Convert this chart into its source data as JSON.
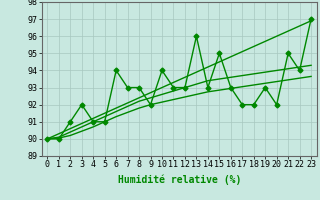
{
  "main_line": [
    90,
    90,
    91,
    92,
    91,
    91,
    94,
    93,
    93,
    92,
    94,
    93,
    93,
    96,
    93,
    95,
    93,
    92,
    92,
    93,
    92,
    95,
    94,
    97
  ],
  "trend_line1": [
    90,
    90.3,
    90.6,
    90.9,
    91.2,
    91.5,
    91.8,
    92.1,
    92.4,
    92.7,
    93.0,
    93.3,
    93.6,
    93.9,
    94.2,
    94.5,
    94.8,
    95.1,
    95.4,
    95.7,
    96.0,
    96.3,
    96.6,
    96.9
  ],
  "trend_line2": [
    90,
    90.1,
    90.4,
    90.7,
    91.0,
    91.3,
    91.6,
    91.9,
    92.2,
    92.4,
    92.6,
    92.8,
    93.0,
    93.2,
    93.4,
    93.5,
    93.6,
    93.7,
    93.8,
    93.9,
    94.0,
    94.1,
    94.2,
    94.3
  ],
  "trend_line3": [
    90,
    90.05,
    90.2,
    90.45,
    90.7,
    91.0,
    91.3,
    91.55,
    91.8,
    92.0,
    92.15,
    92.3,
    92.45,
    92.6,
    92.75,
    92.85,
    92.95,
    93.05,
    93.15,
    93.25,
    93.35,
    93.45,
    93.55,
    93.65
  ],
  "x": [
    0,
    1,
    2,
    3,
    4,
    5,
    6,
    7,
    8,
    9,
    10,
    11,
    12,
    13,
    14,
    15,
    16,
    17,
    18,
    19,
    20,
    21,
    22,
    23
  ],
  "ylim": [
    89,
    98
  ],
  "yticks": [
    89,
    90,
    91,
    92,
    93,
    94,
    95,
    96,
    97,
    98
  ],
  "xlabel": "Humidité relative (%)",
  "line_color": "#008800",
  "bg_color": "#c8e8e0",
  "grid_color": "#a8c8c0",
  "marker": "D",
  "marker_size": 2.5,
  "linewidth": 1.0,
  "xlabel_fontsize": 7,
  "tick_fontsize": 6
}
